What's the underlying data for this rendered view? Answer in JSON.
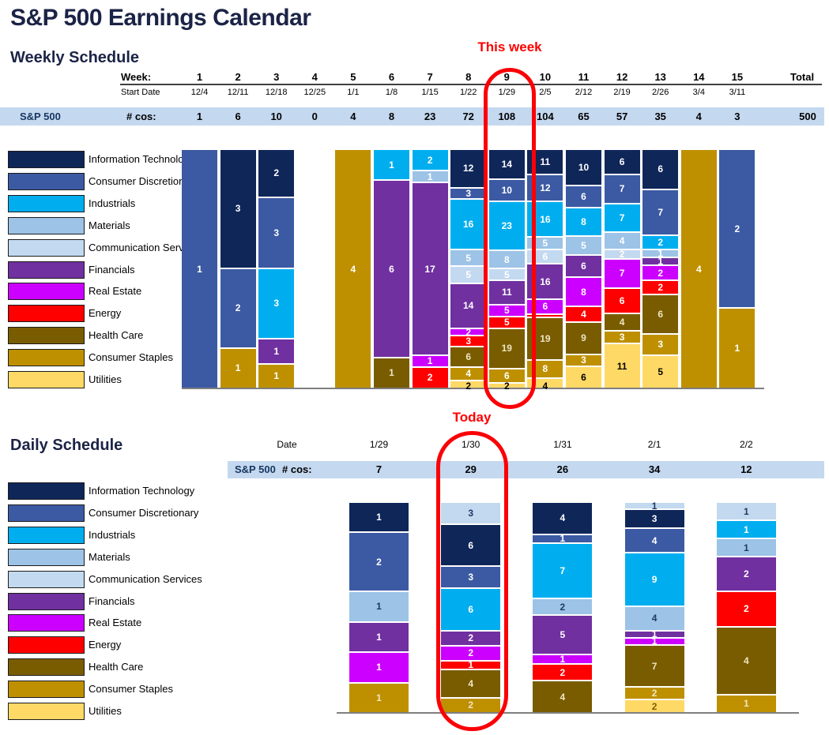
{
  "title": "S&P 500 Earnings Calendar",
  "sectors": [
    {
      "key": "it",
      "name": "Information Technology",
      "color": "#0F2659"
    },
    {
      "key": "cd",
      "name": "Consumer Discretionary",
      "color": "#3C5AA3"
    },
    {
      "key": "ind",
      "name": "Industrials",
      "color": "#00AEEF"
    },
    {
      "key": "mat",
      "name": "Materials",
      "color": "#9DC3E6"
    },
    {
      "key": "com",
      "name": "Communication Services",
      "color": "#C2D9F0"
    },
    {
      "key": "fin",
      "name": "Financials",
      "color": "#7030A0"
    },
    {
      "key": "re",
      "name": "Real Estate",
      "color": "#CC00FF"
    },
    {
      "key": "en",
      "name": "Energy",
      "color": "#FF0000"
    },
    {
      "key": "hc",
      "name": "Health Care",
      "color": "#795C00"
    },
    {
      "key": "cst",
      "name": "Consumer Staples",
      "color": "#BE9000"
    },
    {
      "key": "ut",
      "name": "Utilities",
      "color": "#FFD966"
    }
  ],
  "weekly": {
    "heading": "Weekly Schedule",
    "annotation": "This week",
    "highlight_week": 9,
    "labels": {
      "week": "Week:",
      "start_date": "Start Date",
      "index": "S&P 500",
      "cos": "# cos:",
      "total": "Total"
    }
  },
  "daily": {
    "heading": "Daily Schedule",
    "annotation": "Today",
    "highlight_date": "1/30",
    "labels": {
      "date": "Date",
      "index": "S&P 500",
      "cos": "# cos:"
    }
  },
  "chart_data": [
    {
      "id": "weekly",
      "type": "bar",
      "stacked": "percent",
      "title": "Weekly Schedule",
      "total": 500,
      "categories": [
        "1",
        "2",
        "3",
        "4",
        "5",
        "6",
        "7",
        "8",
        "9",
        "10",
        "11",
        "12",
        "13",
        "14",
        "15"
      ],
      "columns": [
        {
          "week": "1",
          "start": "12/4",
          "count": 1,
          "segments": [
            {
              "sector": "cd",
              "value": 1
            }
          ]
        },
        {
          "week": "2",
          "start": "12/11",
          "count": 6,
          "segments": [
            {
              "sector": "it",
              "value": 3
            },
            {
              "sector": "cd",
              "value": 2
            },
            {
              "sector": "cst",
              "value": 1
            }
          ]
        },
        {
          "week": "3",
          "start": "12/18",
          "count": 10,
          "segments": [
            {
              "sector": "it",
              "value": 2
            },
            {
              "sector": "cd",
              "value": 3
            },
            {
              "sector": "ind",
              "value": 3
            },
            {
              "sector": "fin",
              "value": 1
            },
            {
              "sector": "cst",
              "value": 1
            }
          ]
        },
        {
          "week": "4",
          "start": "12/25",
          "count": 0,
          "segments": []
        },
        {
          "week": "5",
          "start": "1/1",
          "count": 4,
          "segments": [
            {
              "sector": "cst",
              "value": 4
            }
          ]
        },
        {
          "week": "6",
          "start": "1/8",
          "count": 8,
          "segments": [
            {
              "sector": "ind",
              "value": 1
            },
            {
              "sector": "fin",
              "value": 6
            },
            {
              "sector": "hc",
              "value": 1
            }
          ]
        },
        {
          "week": "7",
          "start": "1/15",
          "count": 23,
          "segments": [
            {
              "sector": "ind",
              "value": 2
            },
            {
              "sector": "mat",
              "value": 1
            },
            {
              "sector": "fin",
              "value": 17
            },
            {
              "sector": "re",
              "value": 1
            },
            {
              "sector": "en",
              "value": 2
            }
          ]
        },
        {
          "week": "8",
          "start": "1/22",
          "count": 72,
          "segments": [
            {
              "sector": "it",
              "value": 12
            },
            {
              "sector": "cd",
              "value": 3
            },
            {
              "sector": "ind",
              "value": 16
            },
            {
              "sector": "mat",
              "value": 5
            },
            {
              "sector": "com",
              "value": 5
            },
            {
              "sector": "fin",
              "value": 14
            },
            {
              "sector": "re",
              "value": 2
            },
            {
              "sector": "en",
              "value": 3
            },
            {
              "sector": "hc",
              "value": 6
            },
            {
              "sector": "cst",
              "value": 4
            },
            {
              "sector": "ut",
              "value": 2
            }
          ]
        },
        {
          "week": "9",
          "start": "1/29",
          "count": 108,
          "segments": [
            {
              "sector": "it",
              "value": 14
            },
            {
              "sector": "cd",
              "value": 10
            },
            {
              "sector": "ind",
              "value": 23
            },
            {
              "sector": "mat",
              "value": 8
            },
            {
              "sector": "com",
              "value": 5
            },
            {
              "sector": "fin",
              "value": 11
            },
            {
              "sector": "re",
              "value": 5
            },
            {
              "sector": "en",
              "value": 5
            },
            {
              "sector": "hc",
              "value": 19
            },
            {
              "sector": "cst",
              "value": 6
            },
            {
              "sector": "ut",
              "value": 2
            }
          ]
        },
        {
          "week": "10",
          "start": "2/5",
          "count": 104,
          "segments": [
            {
              "sector": "it",
              "value": 11
            },
            {
              "sector": "cd",
              "value": 12
            },
            {
              "sector": "ind",
              "value": 16
            },
            {
              "sector": "mat",
              "value": 5
            },
            {
              "sector": "com",
              "value": 6
            },
            {
              "sector": "fin",
              "value": 16
            },
            {
              "sector": "re",
              "value": 6
            },
            {
              "sector": "en",
              "value": 1
            },
            {
              "sector": "hc",
              "value": 19
            },
            {
              "sector": "cst",
              "value": 8
            },
            {
              "sector": "ut",
              "value": 4
            }
          ]
        },
        {
          "week": "11",
          "start": "2/12",
          "count": 65,
          "segments": [
            {
              "sector": "it",
              "value": 10
            },
            {
              "sector": "cd",
              "value": 6
            },
            {
              "sector": "ind",
              "value": 8
            },
            {
              "sector": "mat",
              "value": 5
            },
            {
              "sector": "fin",
              "value": 6
            },
            {
              "sector": "re",
              "value": 8
            },
            {
              "sector": "en",
              "value": 4
            },
            {
              "sector": "hc",
              "value": 9
            },
            {
              "sector": "cst",
              "value": 3
            },
            {
              "sector": "ut",
              "value": 6
            }
          ]
        },
        {
          "week": "12",
          "start": "2/19",
          "count": 57,
          "segments": [
            {
              "sector": "it",
              "value": 6
            },
            {
              "sector": "cd",
              "value": 7
            },
            {
              "sector": "ind",
              "value": 7
            },
            {
              "sector": "mat",
              "value": 4
            },
            {
              "sector": "com",
              "value": 2
            },
            {
              "sector": "re",
              "value": 7
            },
            {
              "sector": "en",
              "value": 6
            },
            {
              "sector": "hc",
              "value": 4
            },
            {
              "sector": "cst",
              "value": 3
            },
            {
              "sector": "ut",
              "value": 11
            }
          ]
        },
        {
          "week": "13",
          "start": "2/26",
          "count": 35,
          "segments": [
            {
              "sector": "it",
              "value": 6
            },
            {
              "sector": "cd",
              "value": 7
            },
            {
              "sector": "ind",
              "value": 2
            },
            {
              "sector": "mat",
              "value": 1
            },
            {
              "sector": "fin",
              "value": 1
            },
            {
              "sector": "re",
              "value": 2
            },
            {
              "sector": "en",
              "value": 2
            },
            {
              "sector": "hc",
              "value": 6
            },
            {
              "sector": "cst",
              "value": 3
            },
            {
              "sector": "ut",
              "value": 5
            }
          ]
        },
        {
          "week": "14",
          "start": "3/4",
          "count": 4,
          "segments": [
            {
              "sector": "cst",
              "value": 4
            }
          ]
        },
        {
          "week": "15",
          "start": "3/11",
          "count": 3,
          "segments": [
            {
              "sector": "cd",
              "value": 2
            },
            {
              "sector": "cst",
              "value": 1
            }
          ]
        }
      ]
    },
    {
      "id": "daily",
      "type": "bar",
      "stacked": "percent",
      "title": "Daily Schedule",
      "categories": [
        "1/29",
        "1/30",
        "1/31",
        "2/1",
        "2/2"
      ],
      "columns": [
        {
          "date": "1/29",
          "count": 7,
          "segments": [
            {
              "sector": "it",
              "value": 1
            },
            {
              "sector": "cd",
              "value": 2
            },
            {
              "sector": "mat",
              "value": 1
            },
            {
              "sector": "fin",
              "value": 1
            },
            {
              "sector": "re",
              "value": 1
            },
            {
              "sector": "cst",
              "value": 1
            }
          ]
        },
        {
          "date": "1/30",
          "count": 29,
          "segments": [
            {
              "sector": "com",
              "value": 3
            },
            {
              "sector": "it",
              "value": 6
            },
            {
              "sector": "cd",
              "value": 3
            },
            {
              "sector": "ind",
              "value": 6
            },
            {
              "sector": "fin",
              "value": 2
            },
            {
              "sector": "re",
              "value": 2
            },
            {
              "sector": "en",
              "value": 1
            },
            {
              "sector": "hc",
              "value": 4
            },
            {
              "sector": "cst",
              "value": 2
            }
          ]
        },
        {
          "date": "1/31",
          "count": 26,
          "segments": [
            {
              "sector": "it",
              "value": 4
            },
            {
              "sector": "cd",
              "value": 1
            },
            {
              "sector": "ind",
              "value": 7
            },
            {
              "sector": "mat",
              "value": 2
            },
            {
              "sector": "fin",
              "value": 5
            },
            {
              "sector": "re",
              "value": 1
            },
            {
              "sector": "en",
              "value": 2
            },
            {
              "sector": "hc",
              "value": 4
            }
          ]
        },
        {
          "date": "2/1",
          "count": 34,
          "segments": [
            {
              "sector": "com",
              "value": 1
            },
            {
              "sector": "it",
              "value": 3
            },
            {
              "sector": "cd",
              "value": 4
            },
            {
              "sector": "ind",
              "value": 9
            },
            {
              "sector": "mat",
              "value": 4
            },
            {
              "sector": "fin",
              "value": 1
            },
            {
              "sector": "re",
              "value": 1
            },
            {
              "sector": "hc",
              "value": 7
            },
            {
              "sector": "cst",
              "value": 2
            },
            {
              "sector": "ut",
              "value": 2
            }
          ]
        },
        {
          "date": "2/2",
          "count": 12,
          "segments": [
            {
              "sector": "com",
              "value": 1
            },
            {
              "sector": "ind",
              "value": 1
            },
            {
              "sector": "mat",
              "value": 1
            },
            {
              "sector": "fin",
              "value": 2
            },
            {
              "sector": "en",
              "value": 2
            },
            {
              "sector": "hc",
              "value": 4
            },
            {
              "sector": "cst",
              "value": 1
            }
          ]
        }
      ]
    }
  ]
}
